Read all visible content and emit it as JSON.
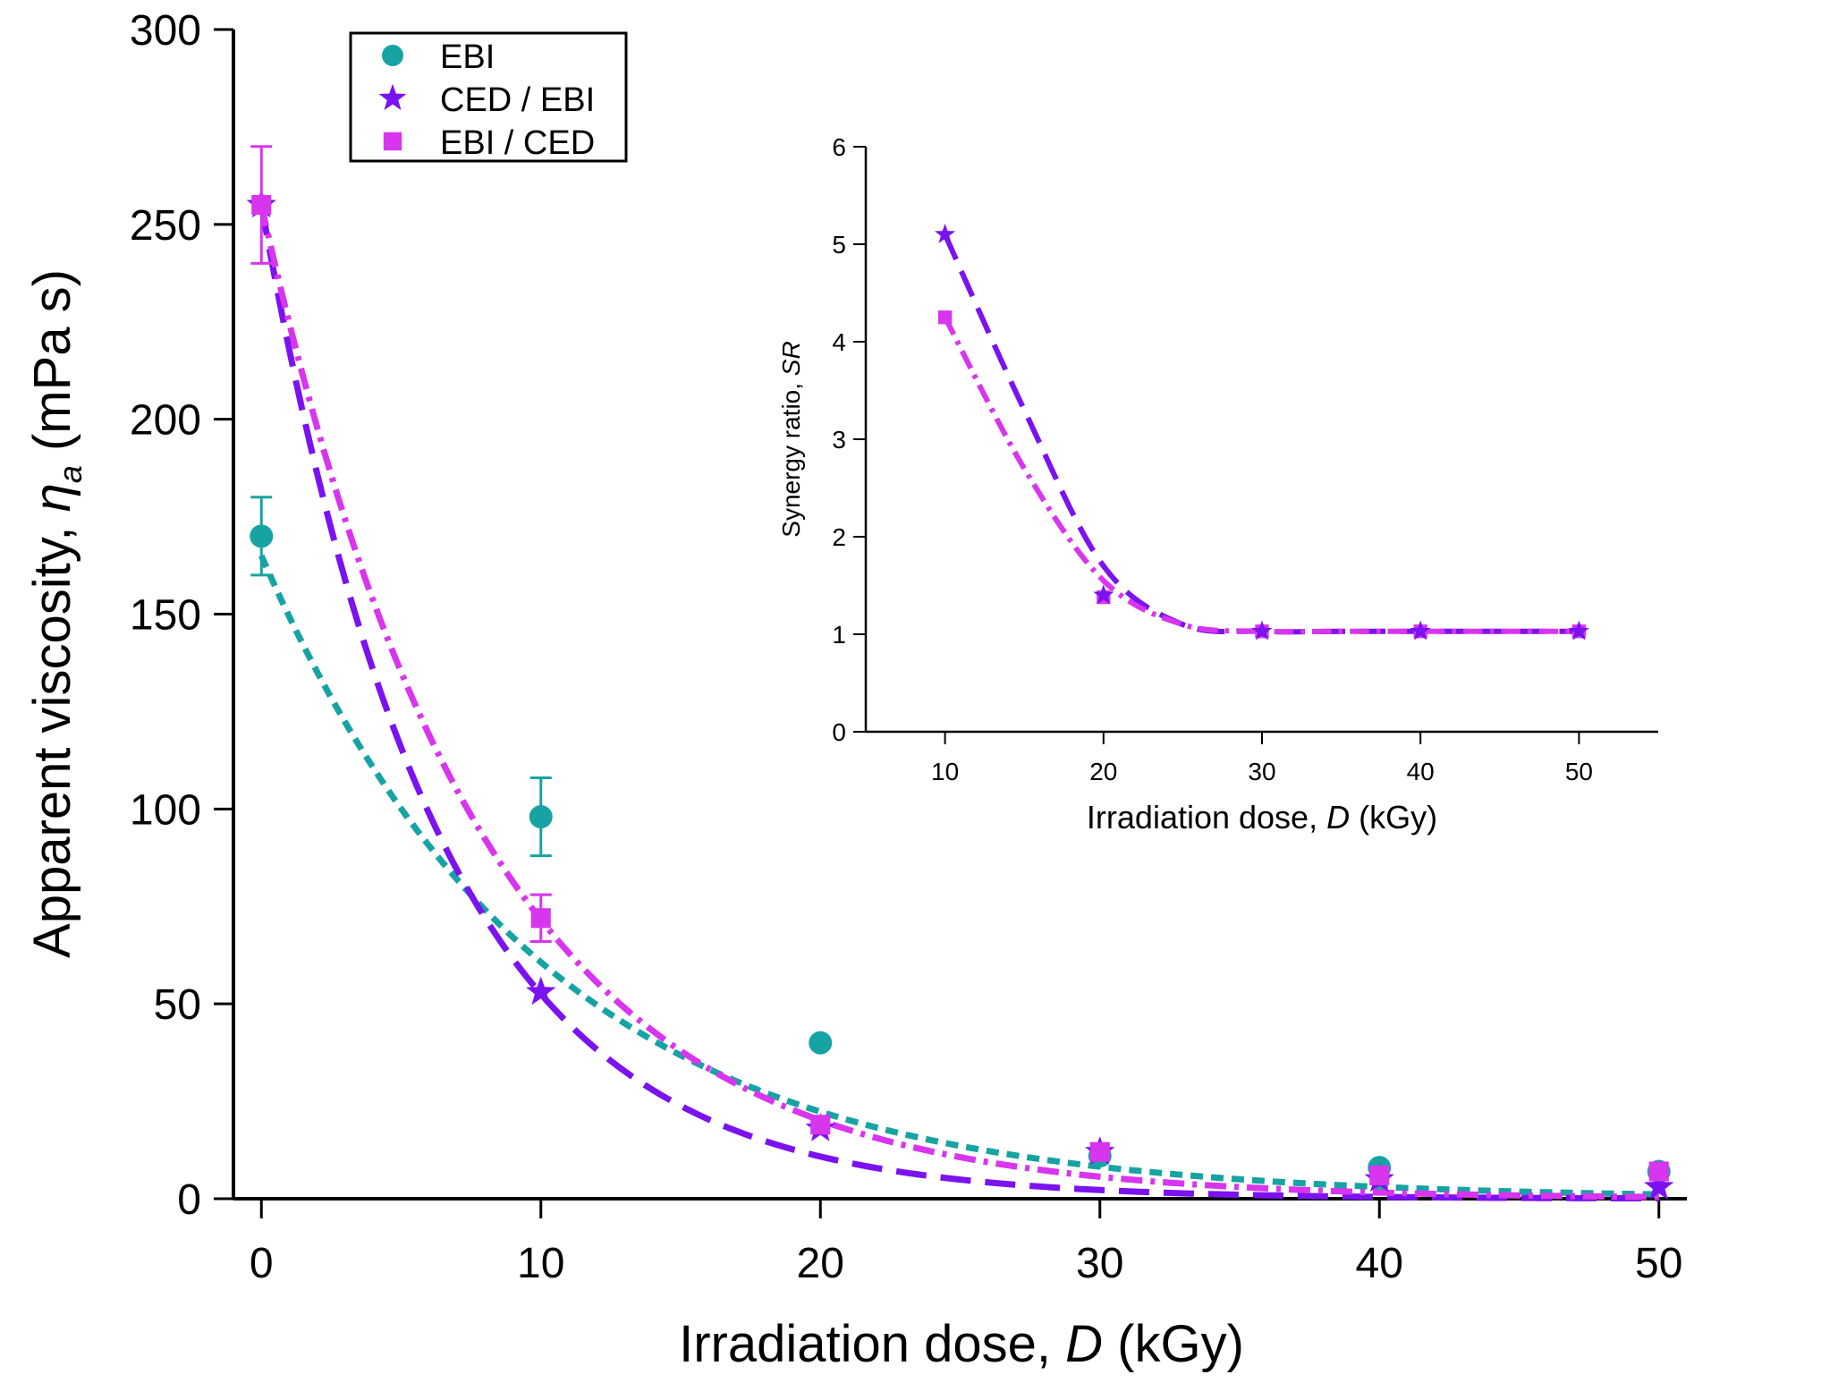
{
  "colors": {
    "ebi": "#17a3a3",
    "ced_ebi": "#7b12f0",
    "ebi_ced": "#d835ee",
    "axis": "#000000"
  },
  "chart_data": [
    {
      "id": "main",
      "type": "scatter",
      "xlabel": {
        "prefix": "Irradiation dose, ",
        "symbol": "D",
        "suffix": " (kGy)"
      },
      "ylabel": {
        "prefix": "Apparent viscosity, ",
        "symbol": "η",
        "subscript": "a",
        "suffix": " (mPa s)"
      },
      "xlim": [
        -1,
        51
      ],
      "ylim": [
        0,
        300
      ],
      "xticks": [
        0,
        10,
        20,
        30,
        40,
        50
      ],
      "yticks": [
        0,
        50,
        100,
        150,
        200,
        250,
        300
      ],
      "legend_position": "top-left",
      "series": [
        {
          "name": "EBI",
          "marker": "circle",
          "color": "#17a3a3",
          "x": [
            0,
            10,
            20,
            30,
            40,
            50
          ],
          "y": [
            170,
            98,
            40,
            11,
            8,
            7
          ],
          "err": [
            10,
            10,
            0,
            0,
            0,
            0
          ],
          "fit_dash": "dash-dense",
          "fit_y0": 165,
          "fit_k": 0.1
        },
        {
          "name": "CED / EBI",
          "marker": "star",
          "color": "#7b12f0",
          "x": [
            0,
            10,
            20,
            30,
            40,
            50
          ],
          "y": [
            255,
            53,
            18,
            12,
            5,
            3
          ],
          "err": [
            0,
            0,
            0,
            0,
            0,
            0
          ],
          "fit_dash": "dash-long",
          "fit_y0": 255,
          "fit_k": 0.158
        },
        {
          "name": "EBI / CED",
          "marker": "square",
          "color": "#d835ee",
          "x": [
            0,
            10,
            20,
            30,
            40,
            50
          ],
          "y": [
            255,
            72,
            19,
            12,
            6,
            7
          ],
          "err": [
            15,
            6,
            0,
            0,
            0,
            0
          ],
          "fit_dash": "dash-dot",
          "fit_y0": 255,
          "fit_k": 0.127
        }
      ]
    },
    {
      "id": "inset",
      "type": "scatter",
      "xlabel": {
        "prefix": "Irradiation dose, ",
        "symbol": "D",
        "suffix": " (kGy)"
      },
      "ylabel": {
        "prefix": "Synergy ratio, ",
        "symbol": "SR",
        "suffix": ""
      },
      "xlim": [
        5,
        55
      ],
      "ylim": [
        0,
        6
      ],
      "xticks": [
        10,
        20,
        30,
        40,
        50
      ],
      "yticks": [
        0,
        1,
        2,
        3,
        4,
        5,
        6
      ],
      "series": [
        {
          "name": "CED / EBI",
          "marker": "star",
          "color": "#7b12f0",
          "x": [
            10,
            20,
            30,
            40,
            50
          ],
          "y": [
            5.1,
            1.4,
            1.03,
            1.03,
            1.03
          ],
          "curve_y": [
            5.1,
            3.3,
            1.7,
            1.1,
            1.03,
            1.03,
            1.03,
            1.03,
            1.03
          ],
          "curve_x": [
            10,
            15,
            20,
            25,
            30,
            35,
            40,
            45,
            50
          ],
          "fit_dash": "dash-long"
        },
        {
          "name": "EBI / CED",
          "marker": "square",
          "color": "#d835ee",
          "x": [
            10,
            20,
            30,
            40,
            50
          ],
          "y": [
            4.25,
            1.38,
            1.03,
            1.03,
            1.03
          ],
          "curve_y": [
            4.25,
            2.7,
            1.55,
            1.1,
            1.03,
            1.03,
            1.03,
            1.03,
            1.03
          ],
          "curve_x": [
            10,
            15,
            20,
            25,
            30,
            35,
            40,
            45,
            50
          ],
          "fit_dash": "dash-dot"
        }
      ]
    }
  ]
}
